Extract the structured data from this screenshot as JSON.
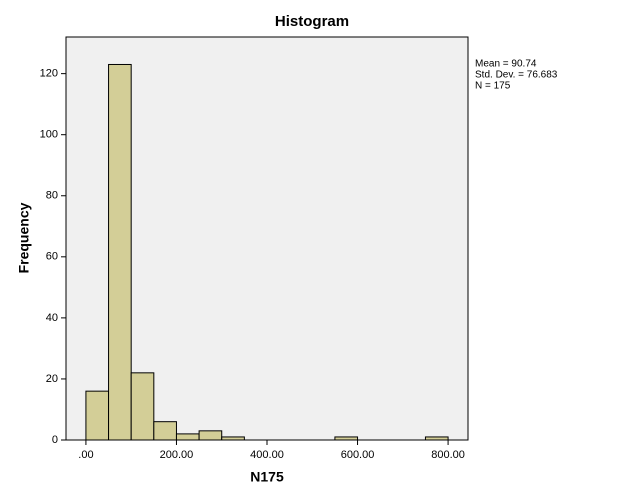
{
  "chart_data": {
    "type": "histogram",
    "title": "Histogram",
    "x_label": "N175",
    "y_label": "Frequency",
    "bins": [
      0,
      50,
      100,
      150,
      200,
      250,
      300,
      350,
      400,
      450,
      500,
      550,
      600,
      650,
      700,
      750,
      800
    ],
    "values": [
      16,
      123,
      22,
      6,
      2,
      3,
      1,
      0,
      0,
      0,
      0,
      1,
      0,
      0,
      0,
      1
    ],
    "color": "#d3ce97",
    "xlim": [
      -44,
      844
    ],
    "xticks": [
      {
        "value": 0,
        "label": ".00"
      },
      {
        "value": 200,
        "label": "200.00"
      },
      {
        "value": 400,
        "label": "400.00"
      },
      {
        "value": 600,
        "label": "600.00"
      },
      {
        "value": 800,
        "label": "800.00"
      }
    ],
    "ylim": [
      0,
      132
    ],
    "yticks": [
      0,
      20,
      40,
      60,
      80,
      100,
      120
    ],
    "annotations": [
      "Mean = 90.74",
      "Std. Dev. = 76.683",
      "N = 175"
    ]
  }
}
